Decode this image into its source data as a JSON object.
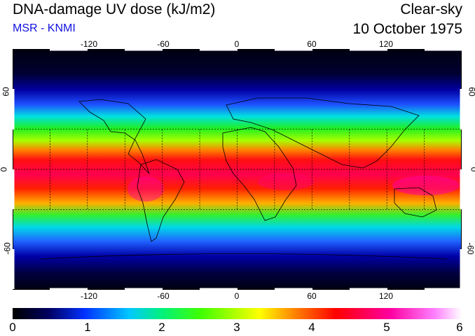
{
  "header": {
    "title": "DNA-damage UV dose (kJ/m2)",
    "source": "MSR - KNMI",
    "condition": "Clear-sky",
    "date": "10 October 1975"
  },
  "map": {
    "projection": "equirectangular",
    "lon_ticks": [
      "-120",
      "-60",
      "0",
      "60",
      "120"
    ],
    "lat_ticks": [
      "60",
      "0",
      "-60"
    ],
    "grid_lat": [
      -30,
      0,
      30
    ],
    "grid_lon": [
      -150,
      -120,
      -90,
      -60,
      -30,
      0,
      30,
      60,
      90,
      120,
      150
    ],
    "extent_lon": [
      -180,
      180
    ],
    "extent_lat": [
      -90,
      90
    ]
  },
  "colorbar": {
    "min": 0,
    "max": 6,
    "labels": [
      "0",
      "1",
      "2",
      "3",
      "4",
      "5",
      "6"
    ]
  },
  "colors": {
    "text": "#000000",
    "source": "#1010e0"
  }
}
